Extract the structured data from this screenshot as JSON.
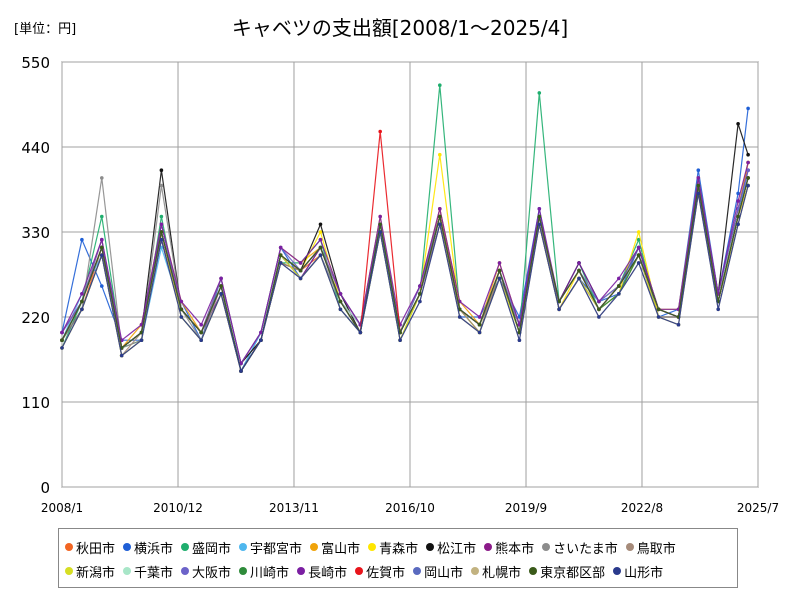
{
  "header": {
    "unit": "[単位：円]",
    "title": "キャベツの支出額[2008/1～2025/4]"
  },
  "chart_data": {
    "type": "line",
    "title": "キャベツの支出額[2008/1～2025/4]",
    "unit_label": "[単位：円]",
    "ylim": [
      0,
      550
    ],
    "yticks": [
      0,
      110,
      220,
      330,
      440,
      550
    ],
    "xlim": [
      2008.0,
      2025.5
    ],
    "xtick_labels": [
      "2008/1",
      "2010/12",
      "2013/11",
      "2016/10",
      "2019/9",
      "2022/8",
      "2025/7"
    ],
    "xtick_values": [
      2008.0,
      2010.917,
      2013.833,
      2016.75,
      2019.667,
      2022.583,
      2025.5
    ],
    "grid": true,
    "legend_position": "bottom",
    "x": [
      2008.0,
      2008.5,
      2009.0,
      2009.5,
      2010.0,
      2010.5,
      2011.0,
      2011.5,
      2012.0,
      2012.5,
      2013.0,
      2013.5,
      2014.0,
      2014.5,
      2015.0,
      2015.5,
      2016.0,
      2016.5,
      2017.0,
      2017.5,
      2018.0,
      2018.5,
      2019.0,
      2019.5,
      2020.0,
      2020.5,
      2021.0,
      2021.5,
      2022.0,
      2022.5,
      2023.0,
      2023.5,
      2024.0,
      2024.5,
      2025.0,
      2025.25
    ],
    "series": [
      {
        "name": "秋田市",
        "color": "#f26522",
        "values": [
          190,
          230,
          310,
          180,
          200,
          330,
          230,
          200,
          260,
          160,
          190,
          300,
          280,
          300,
          240,
          200,
          340,
          200,
          250,
          360,
          230,
          210,
          280,
          210,
          350,
          240,
          280,
          230,
          260,
          300,
          230,
          220,
          400,
          250,
          350,
          420
        ]
      },
      {
        "name": "横浜市",
        "color": "#1f5fd6",
        "values": [
          200,
          320,
          260,
          190,
          190,
          320,
          240,
          190,
          270,
          150,
          200,
          310,
          270,
          310,
          250,
          210,
          330,
          200,
          260,
          350,
          220,
          220,
          270,
          220,
          360,
          230,
          270,
          240,
          250,
          310,
          220,
          230,
          410,
          250,
          380,
          490
        ]
      },
      {
        "name": "盛岡市",
        "color": "#1fae6e",
        "values": [
          180,
          240,
          350,
          180,
          190,
          350,
          220,
          190,
          250,
          150,
          190,
          290,
          290,
          320,
          230,
          200,
          330,
          190,
          250,
          520,
          230,
          200,
          280,
          200,
          510,
          240,
          290,
          230,
          260,
          320,
          220,
          220,
          390,
          240,
          360,
          400
        ]
      },
      {
        "name": "宇都宮市",
        "color": "#4fb7ee",
        "values": [
          190,
          250,
          300,
          170,
          190,
          310,
          230,
          200,
          260,
          150,
          200,
          300,
          270,
          300,
          240,
          210,
          340,
          200,
          260,
          350,
          230,
          210,
          280,
          210,
          340,
          230,
          270,
          230,
          250,
          300,
          220,
          220,
          390,
          240,
          350,
          410
        ]
      },
      {
        "name": "富山市",
        "color": "#f0a30a",
        "values": [
          200,
          240,
          320,
          180,
          210,
          340,
          240,
          200,
          270,
          160,
          200,
          310,
          290,
          310,
          250,
          210,
          350,
          200,
          260,
          360,
          240,
          210,
          290,
          210,
          350,
          240,
          280,
          240,
          260,
          310,
          230,
          230,
          400,
          250,
          360,
          420
        ]
      },
      {
        "name": "青森市",
        "color": "#ffe600",
        "values": [
          180,
          230,
          300,
          170,
          190,
          330,
          220,
          190,
          250,
          150,
          190,
          290,
          280,
          330,
          240,
          200,
          340,
          190,
          250,
          430,
          230,
          200,
          280,
          200,
          340,
          230,
          280,
          230,
          250,
          330,
          220,
          220,
          380,
          240,
          350,
          390
        ]
      },
      {
        "name": "松江市",
        "color": "#111111",
        "values": [
          190,
          230,
          300,
          180,
          200,
          410,
          230,
          200,
          260,
          160,
          190,
          290,
          280,
          340,
          250,
          200,
          340,
          200,
          260,
          350,
          230,
          210,
          270,
          210,
          340,
          240,
          290,
          240,
          260,
          310,
          230,
          220,
          390,
          250,
          470,
          430
        ]
      },
      {
        "name": "熊本市",
        "color": "#8b1a89",
        "values": [
          200,
          240,
          310,
          180,
          200,
          320,
          230,
          200,
          250,
          150,
          190,
          300,
          270,
          310,
          240,
          210,
          330,
          200,
          250,
          340,
          230,
          210,
          280,
          200,
          350,
          230,
          270,
          230,
          250,
          300,
          220,
          220,
          380,
          250,
          360,
          410
        ]
      },
      {
        "name": "さいたま市",
        "color": "#8c8c8c",
        "values": [
          190,
          230,
          400,
          180,
          190,
          390,
          230,
          190,
          260,
          160,
          200,
          300,
          270,
          300,
          240,
          200,
          330,
          200,
          250,
          340,
          230,
          210,
          270,
          210,
          340,
          240,
          280,
          230,
          250,
          300,
          220,
          220,
          390,
          240,
          350,
          400
        ]
      },
      {
        "name": "鳥取市",
        "color": "#a68b7a",
        "values": [
          190,
          240,
          310,
          170,
          200,
          340,
          230,
          200,
          260,
          150,
          190,
          290,
          280,
          310,
          240,
          200,
          340,
          200,
          250,
          350,
          230,
          200,
          280,
          200,
          340,
          230,
          270,
          230,
          260,
          300,
          230,
          220,
          390,
          240,
          350,
          400
        ]
      },
      {
        "name": "新潟市",
        "color": "#d6de23",
        "values": [
          180,
          230,
          300,
          170,
          190,
          330,
          220,
          190,
          250,
          150,
          190,
          300,
          270,
          300,
          230,
          200,
          330,
          190,
          250,
          350,
          220,
          200,
          270,
          200,
          340,
          230,
          270,
          230,
          250,
          300,
          220,
          210,
          380,
          240,
          340,
          390
        ]
      },
      {
        "name": "千葉市",
        "color": "#a8e6c8",
        "values": [
          190,
          240,
          310,
          180,
          200,
          330,
          230,
          200,
          260,
          160,
          200,
          300,
          280,
          310,
          240,
          210,
          340,
          200,
          260,
          350,
          230,
          210,
          280,
          210,
          350,
          240,
          280,
          240,
          260,
          300,
          230,
          220,
          390,
          250,
          350,
          400
        ]
      },
      {
        "name": "大阪市",
        "color": "#6c63c9",
        "values": [
          200,
          240,
          320,
          180,
          200,
          340,
          230,
          200,
          270,
          160,
          200,
          310,
          280,
          310,
          250,
          210,
          340,
          200,
          260,
          350,
          230,
          210,
          280,
          210,
          350,
          240,
          280,
          240,
          260,
          310,
          230,
          220,
          400,
          250,
          360,
          410
        ]
      },
      {
        "name": "川崎市",
        "color": "#2e8b3a",
        "values": [
          190,
          240,
          310,
          180,
          200,
          330,
          230,
          200,
          260,
          150,
          190,
          300,
          280,
          310,
          240,
          200,
          340,
          200,
          250,
          350,
          230,
          210,
          280,
          200,
          350,
          240,
          280,
          230,
          250,
          300,
          230,
          220,
          390,
          240,
          350,
          400
        ]
      },
      {
        "name": "長崎市",
        "color": "#7b1fa2",
        "values": [
          200,
          250,
          320,
          190,
          210,
          340,
          240,
          210,
          270,
          160,
          200,
          310,
          290,
          320,
          250,
          210,
          350,
          210,
          260,
          360,
          240,
          220,
          290,
          210,
          360,
          240,
          290,
          240,
          270,
          310,
          230,
          230,
          400,
          250,
          370,
          420
        ]
      },
      {
        "name": "佐賀市",
        "color": "#e8141b",
        "values": [
          190,
          240,
          310,
          180,
          200,
          330,
          230,
          200,
          260,
          150,
          190,
          300,
          280,
          310,
          240,
          200,
          460,
          200,
          250,
          350,
          230,
          210,
          280,
          200,
          350,
          240,
          280,
          230,
          260,
          300,
          230,
          220,
          390,
          240,
          350,
          400
        ]
      },
      {
        "name": "岡山市",
        "color": "#5a6abf",
        "values": [
          190,
          240,
          310,
          180,
          200,
          330,
          230,
          200,
          260,
          150,
          190,
          300,
          280,
          310,
          240,
          200,
          340,
          200,
          250,
          350,
          230,
          210,
          280,
          200,
          350,
          240,
          280,
          230,
          260,
          300,
          230,
          220,
          390,
          240,
          350,
          400
        ]
      },
      {
        "name": "札幌市",
        "color": "#c2b280",
        "values": [
          180,
          230,
          300,
          170,
          190,
          320,
          220,
          190,
          250,
          150,
          190,
          290,
          270,
          300,
          230,
          200,
          330,
          190,
          240,
          340,
          220,
          200,
          270,
          190,
          340,
          230,
          270,
          220,
          250,
          290,
          220,
          210,
          380,
          230,
          340,
          390
        ]
      },
      {
        "name": "東京都区部",
        "color": "#3a5a1a",
        "values": [
          190,
          240,
          310,
          180,
          200,
          330,
          230,
          200,
          260,
          150,
          190,
          300,
          280,
          310,
          240,
          200,
          340,
          200,
          250,
          350,
          230,
          210,
          280,
          200,
          350,
          240,
          280,
          230,
          260,
          300,
          230,
          220,
          390,
          240,
          350,
          400
        ]
      },
      {
        "name": "山形市",
        "color": "#2a3a8c",
        "values": [
          180,
          230,
          300,
          170,
          190,
          320,
          220,
          190,
          250,
          150,
          190,
          290,
          270,
          300,
          230,
          200,
          330,
          190,
          240,
          340,
          220,
          200,
          270,
          190,
          340,
          230,
          270,
          220,
          250,
          290,
          220,
          210,
          380,
          230,
          340,
          390
        ]
      }
    ]
  }
}
